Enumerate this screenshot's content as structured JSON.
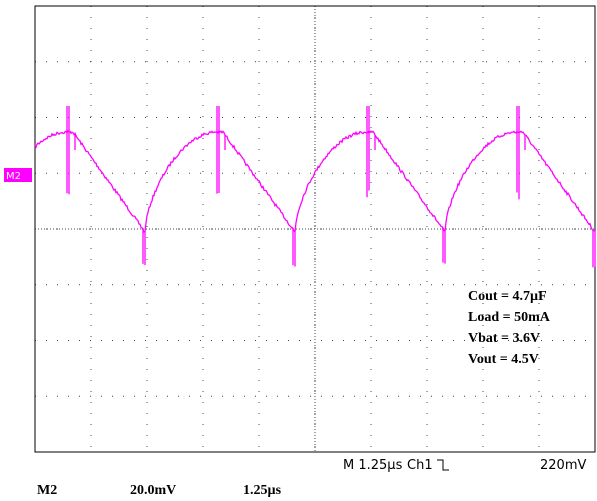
{
  "screen": {
    "marker": "M2",
    "annotations": [
      "Cout = 4.7µF",
      "Load = 50mA",
      "Vbat = 3.6V",
      "Vout = 4.5V"
    ],
    "status": {
      "timebase": "M 1.25µs",
      "channel": "Ch1",
      "trigger_level": "220mV"
    }
  },
  "footer": {
    "source": "M2",
    "scale": "20.0mV",
    "time": "1.25µs"
  }
}
